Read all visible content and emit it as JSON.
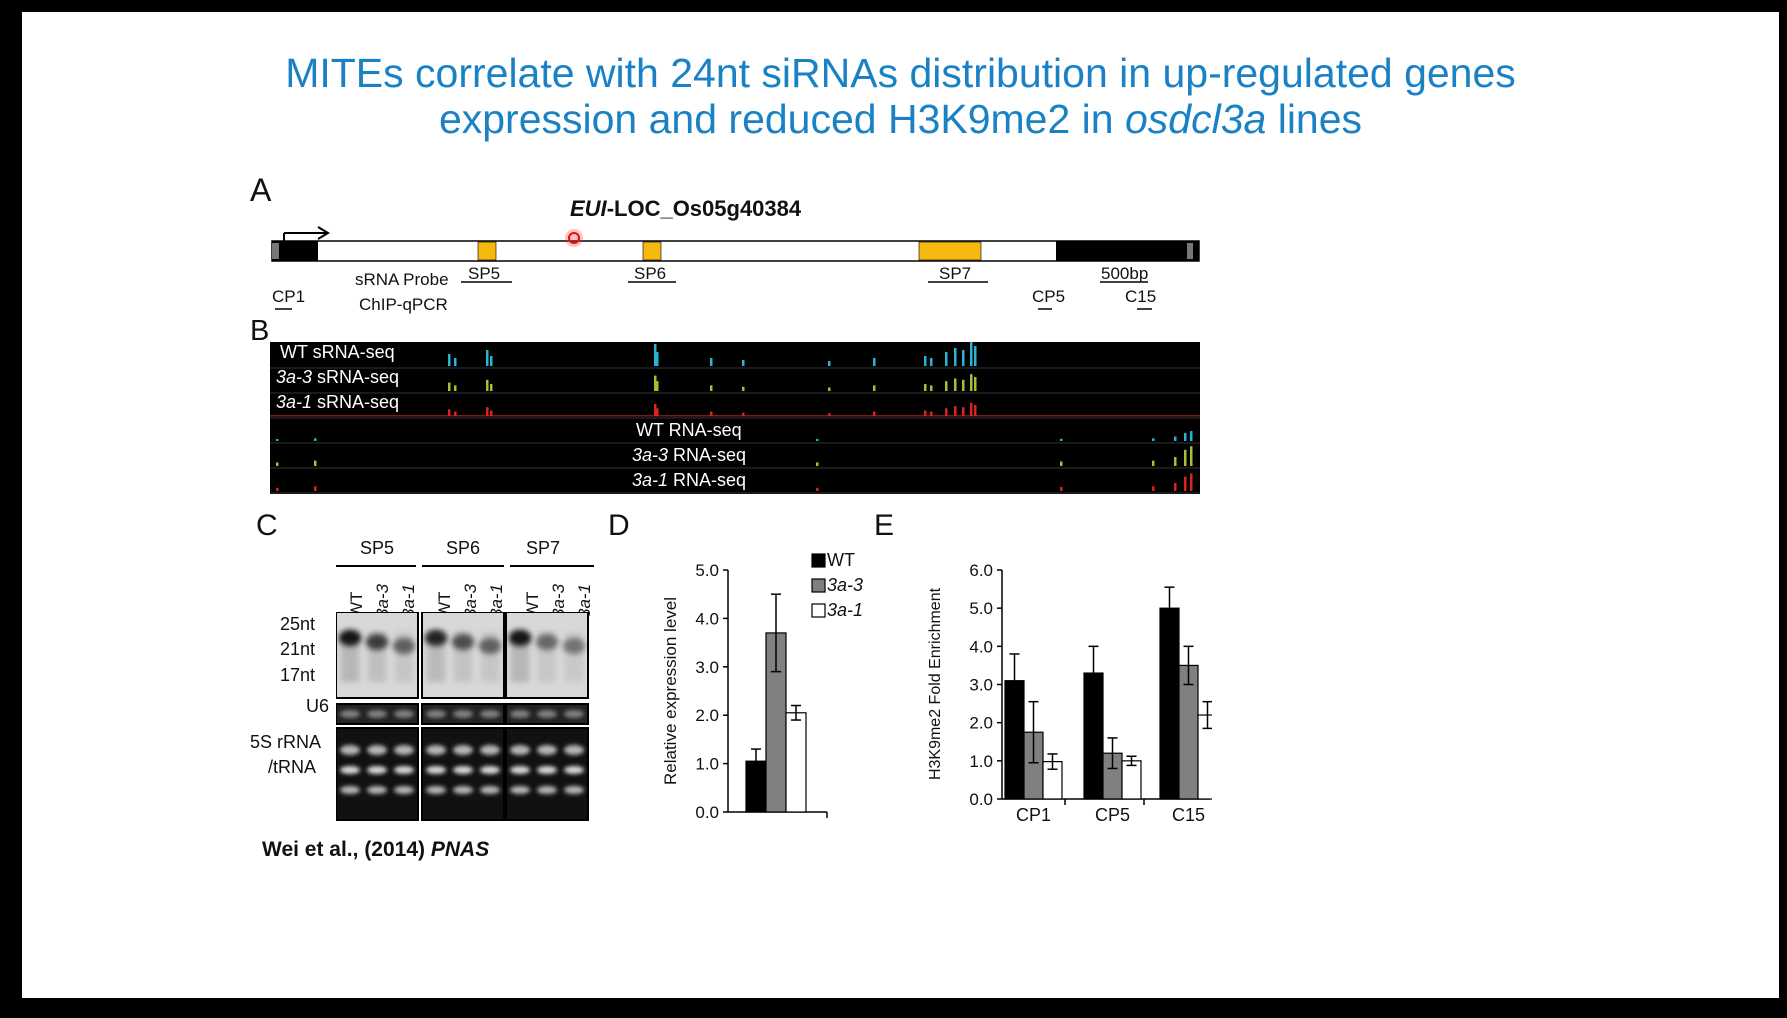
{
  "title": {
    "line1": "MITEs correlate with 24nt siRNAs distribution in up-regulated genes",
    "line2_a": "expression and reduced H3K9me2 in ",
    "line2_b": "osdcl3a",
    "line2_c": " lines"
  },
  "panelA": {
    "letter": "A",
    "gene_italic": "EUI",
    "gene_rest": "-LOC_Os05g40384",
    "probe_label": "sRNA Probe",
    "chip_label": "ChIP-qPCR",
    "sites": [
      "SP5",
      "SP6",
      "SP7"
    ],
    "chip_sites": [
      "CP1",
      "CP5",
      "C15"
    ],
    "scale": "500bp"
  },
  "panelB": {
    "letter": "B",
    "tracks": [
      {
        "prefix": "WT",
        "suffix": " sRNA-seq",
        "prefix_italic": false
      },
      {
        "prefix": "3a-3",
        "suffix": " sRNA-seq",
        "prefix_italic": true
      },
      {
        "prefix": "3a-1",
        "suffix": " sRNA-seq",
        "prefix_italic": true
      },
      {
        "prefix": "WT",
        "suffix": " RNA-seq",
        "prefix_italic": false
      },
      {
        "prefix": "3a-3",
        "suffix": " RNA-seq",
        "prefix_italic": true
      },
      {
        "prefix": "3a-1",
        "suffix": " RNA-seq",
        "prefix_italic": true
      }
    ],
    "colors": {
      "wt": "#2ab3d4",
      "a3": "#a8c030",
      "a1": "#d8261c"
    }
  },
  "panelC": {
    "letter": "C",
    "groups": [
      "SP5",
      "SP6",
      "SP7"
    ],
    "lanes": [
      "WT",
      "3a-3",
      "3a-1"
    ],
    "size_markers": [
      "25nt",
      "21nt",
      "17nt"
    ],
    "u6": "U6",
    "rrna_1": "5S rRNA",
    "rrna_2": "/tRNA"
  },
  "citation": {
    "authors": "Wei et al., (2014) ",
    "journal": "PNAS"
  },
  "chart_data": [
    {
      "panel": "D",
      "type": "bar",
      "categories": [
        "WT",
        "3a-3",
        "3a-1"
      ],
      "values": [
        1.05,
        3.7,
        2.05
      ],
      "errors": [
        0.25,
        0.8,
        0.15
      ],
      "colors": [
        "#000000",
        "#808080",
        "#ffffff"
      ],
      "ylabel": "Relative expression level",
      "ylim": [
        0,
        5
      ],
      "yticks": [
        "0.0",
        "1.0",
        "2.0",
        "3.0",
        "4.0",
        "5.0"
      ],
      "legend": [
        "WT",
        "3a-3",
        "3a-1"
      ],
      "legend_position": "top-right",
      "grid": false
    },
    {
      "panel": "E",
      "type": "bar",
      "categories": [
        "CP1",
        "CP5",
        "C15"
      ],
      "series": [
        {
          "name": "WT",
          "values": [
            3.1,
            3.3,
            5.0
          ],
          "errors": [
            0.7,
            0.7,
            0.55
          ],
          "color": "#000000"
        },
        {
          "name": "3a-3",
          "values": [
            1.75,
            1.2,
            3.5
          ],
          "errors": [
            0.8,
            0.4,
            0.5
          ],
          "color": "#808080"
        },
        {
          "name": "3a-1",
          "values": [
            0.98,
            1.0,
            2.2
          ],
          "errors": [
            0.2,
            0.12,
            0.35
          ],
          "color": "#ffffff"
        }
      ],
      "ylabel": "H3K9me2 Fold Enrichment",
      "ylim": [
        0,
        6
      ],
      "yticks": [
        "0.0",
        "1.0",
        "2.0",
        "3.0",
        "4.0",
        "5.0",
        "6.0"
      ],
      "grid": false
    }
  ]
}
